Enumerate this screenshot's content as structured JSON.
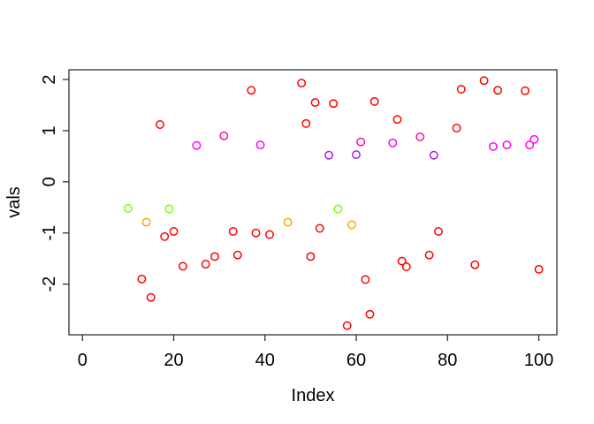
{
  "chart_data": {
    "type": "scatter",
    "title": "",
    "xlabel": "Index",
    "ylabel": "vals",
    "x_ticks": [
      0,
      20,
      40,
      60,
      80,
      100
    ],
    "y_ticks": [
      -2,
      -1,
      0,
      1,
      2
    ],
    "xlim": [
      -2.96,
      103.96
    ],
    "ylim": [
      -2.99,
      2.19
    ],
    "grid": false,
    "legend": "none",
    "point_style": "open-circle",
    "background_color": "#ffffff",
    "axis_color": "#333333",
    "palette": {
      "red": "#FF0000",
      "pink": "#FF1493",
      "magenta": "#FF00FF",
      "purple": "#A020F0",
      "green": "#7CFC00",
      "orange": "#FFA500"
    },
    "points": [
      {
        "x": 10,
        "y": -0.52,
        "color": "green"
      },
      {
        "x": 13,
        "y": -1.9,
        "color": "red"
      },
      {
        "x": 14,
        "y": -0.79,
        "color": "orange"
      },
      {
        "x": 15,
        "y": -2.26,
        "color": "red"
      },
      {
        "x": 17,
        "y": 1.12,
        "color": "red"
      },
      {
        "x": 18,
        "y": -1.07,
        "color": "red"
      },
      {
        "x": 19,
        "y": -0.53,
        "color": "green"
      },
      {
        "x": 20,
        "y": -0.97,
        "color": "red"
      },
      {
        "x": 22,
        "y": -1.65,
        "color": "red"
      },
      {
        "x": 25,
        "y": 0.71,
        "color": "magenta"
      },
      {
        "x": 27,
        "y": -1.61,
        "color": "red"
      },
      {
        "x": 29,
        "y": -1.46,
        "color": "red"
      },
      {
        "x": 31,
        "y": 0.9,
        "color": "pink"
      },
      {
        "x": 33,
        "y": -0.97,
        "color": "red"
      },
      {
        "x": 34,
        "y": -1.43,
        "color": "red"
      },
      {
        "x": 37,
        "y": 1.79,
        "color": "red"
      },
      {
        "x": 38,
        "y": -1.0,
        "color": "red"
      },
      {
        "x": 39,
        "y": 0.72,
        "color": "magenta"
      },
      {
        "x": 41,
        "y": -1.03,
        "color": "red"
      },
      {
        "x": 45,
        "y": -0.79,
        "color": "orange"
      },
      {
        "x": 48,
        "y": 1.93,
        "color": "red"
      },
      {
        "x": 49,
        "y": 1.14,
        "color": "red"
      },
      {
        "x": 50,
        "y": -1.46,
        "color": "red"
      },
      {
        "x": 51,
        "y": 1.55,
        "color": "red"
      },
      {
        "x": 52,
        "y": -0.91,
        "color": "red"
      },
      {
        "x": 54,
        "y": 0.52,
        "color": "purple"
      },
      {
        "x": 55,
        "y": 1.53,
        "color": "red"
      },
      {
        "x": 56,
        "y": -0.53,
        "color": "green"
      },
      {
        "x": 58,
        "y": -2.81,
        "color": "red"
      },
      {
        "x": 59,
        "y": -0.84,
        "color": "orange"
      },
      {
        "x": 60,
        "y": 0.53,
        "color": "purple"
      },
      {
        "x": 61,
        "y": 0.78,
        "color": "pink"
      },
      {
        "x": 62,
        "y": -1.91,
        "color": "red"
      },
      {
        "x": 63,
        "y": -2.59,
        "color": "red"
      },
      {
        "x": 64,
        "y": 1.57,
        "color": "red"
      },
      {
        "x": 68,
        "y": 0.76,
        "color": "magenta"
      },
      {
        "x": 69,
        "y": 1.22,
        "color": "red"
      },
      {
        "x": 70,
        "y": -1.55,
        "color": "red"
      },
      {
        "x": 71,
        "y": -1.66,
        "color": "red"
      },
      {
        "x": 74,
        "y": 0.88,
        "color": "pink"
      },
      {
        "x": 76,
        "y": -1.43,
        "color": "red"
      },
      {
        "x": 77,
        "y": 0.52,
        "color": "purple"
      },
      {
        "x": 78,
        "y": -0.97,
        "color": "red"
      },
      {
        "x": 82,
        "y": 1.05,
        "color": "red"
      },
      {
        "x": 83,
        "y": 1.81,
        "color": "red"
      },
      {
        "x": 86,
        "y": -1.62,
        "color": "red"
      },
      {
        "x": 88,
        "y": 1.98,
        "color": "red"
      },
      {
        "x": 90,
        "y": 0.69,
        "color": "magenta"
      },
      {
        "x": 91,
        "y": 1.79,
        "color": "red"
      },
      {
        "x": 93,
        "y": 0.72,
        "color": "magenta"
      },
      {
        "x": 97,
        "y": 1.78,
        "color": "red"
      },
      {
        "x": 98,
        "y": 0.72,
        "color": "magenta"
      },
      {
        "x": 99,
        "y": 0.83,
        "color": "magenta"
      },
      {
        "x": 100,
        "y": -1.71,
        "color": "red"
      }
    ]
  }
}
